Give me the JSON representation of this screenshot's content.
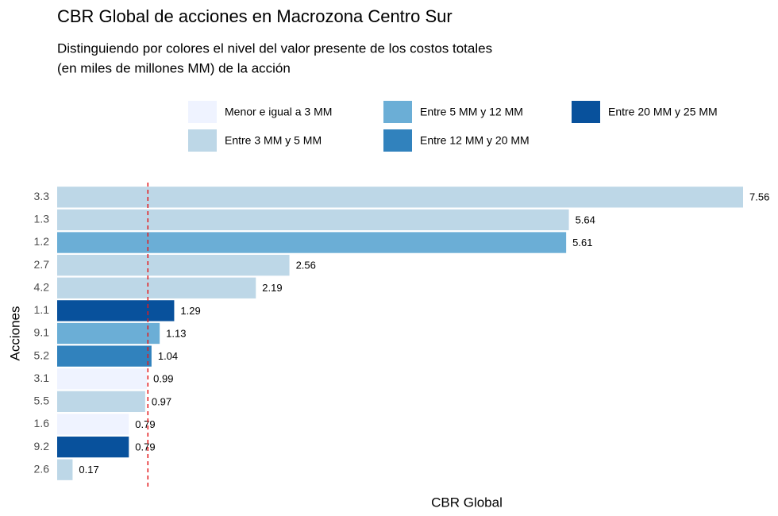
{
  "chart_data": {
    "type": "barh",
    "title": "CBR Global de acciones en Macrozona Centro Sur",
    "subtitle": [
      "Distinguiendo por colores el nivel del valor presente de los costos totales",
      "(en miles de millones MM) de la acción"
    ],
    "xlabel": "CBR Global",
    "ylabel": "Acciones",
    "categories": [
      "3.3",
      "1.3",
      "1.2",
      "2.7",
      "4.2",
      "1.1",
      "9.1",
      "5.2",
      "3.1",
      "5.5",
      "1.6",
      "9.2",
      "2.6"
    ],
    "values": [
      7.56,
      5.64,
      5.61,
      2.56,
      2.19,
      1.29,
      1.13,
      1.04,
      0.99,
      0.97,
      0.79,
      0.79,
      0.17
    ],
    "colors": [
      "#bdd7e7",
      "#bdd7e7",
      "#6baed6",
      "#bdd7e7",
      "#bdd7e7",
      "#08519c",
      "#6baed6",
      "#3182bd",
      "#eff3ff",
      "#bdd7e7",
      "#eff3ff",
      "#08519c",
      "#bdd7e7"
    ],
    "legend": [
      {
        "name": "Menor e igual a 3 MM",
        "color": "#eff3ff"
      },
      {
        "name": "Entre 3 MM y 5 MM",
        "color": "#bdd7e7"
      },
      {
        "name": "Entre 5 MM y 12 MM",
        "color": "#6baed6"
      },
      {
        "name": "Entre 12 MM y 20 MM",
        "color": "#3182bd"
      },
      {
        "name": "Entre 20 MM y 25 MM",
        "color": "#08519c"
      }
    ],
    "reference_line": 1,
    "reference_color": "#e41a1c",
    "xlim": [
      0,
      7.56
    ]
  }
}
